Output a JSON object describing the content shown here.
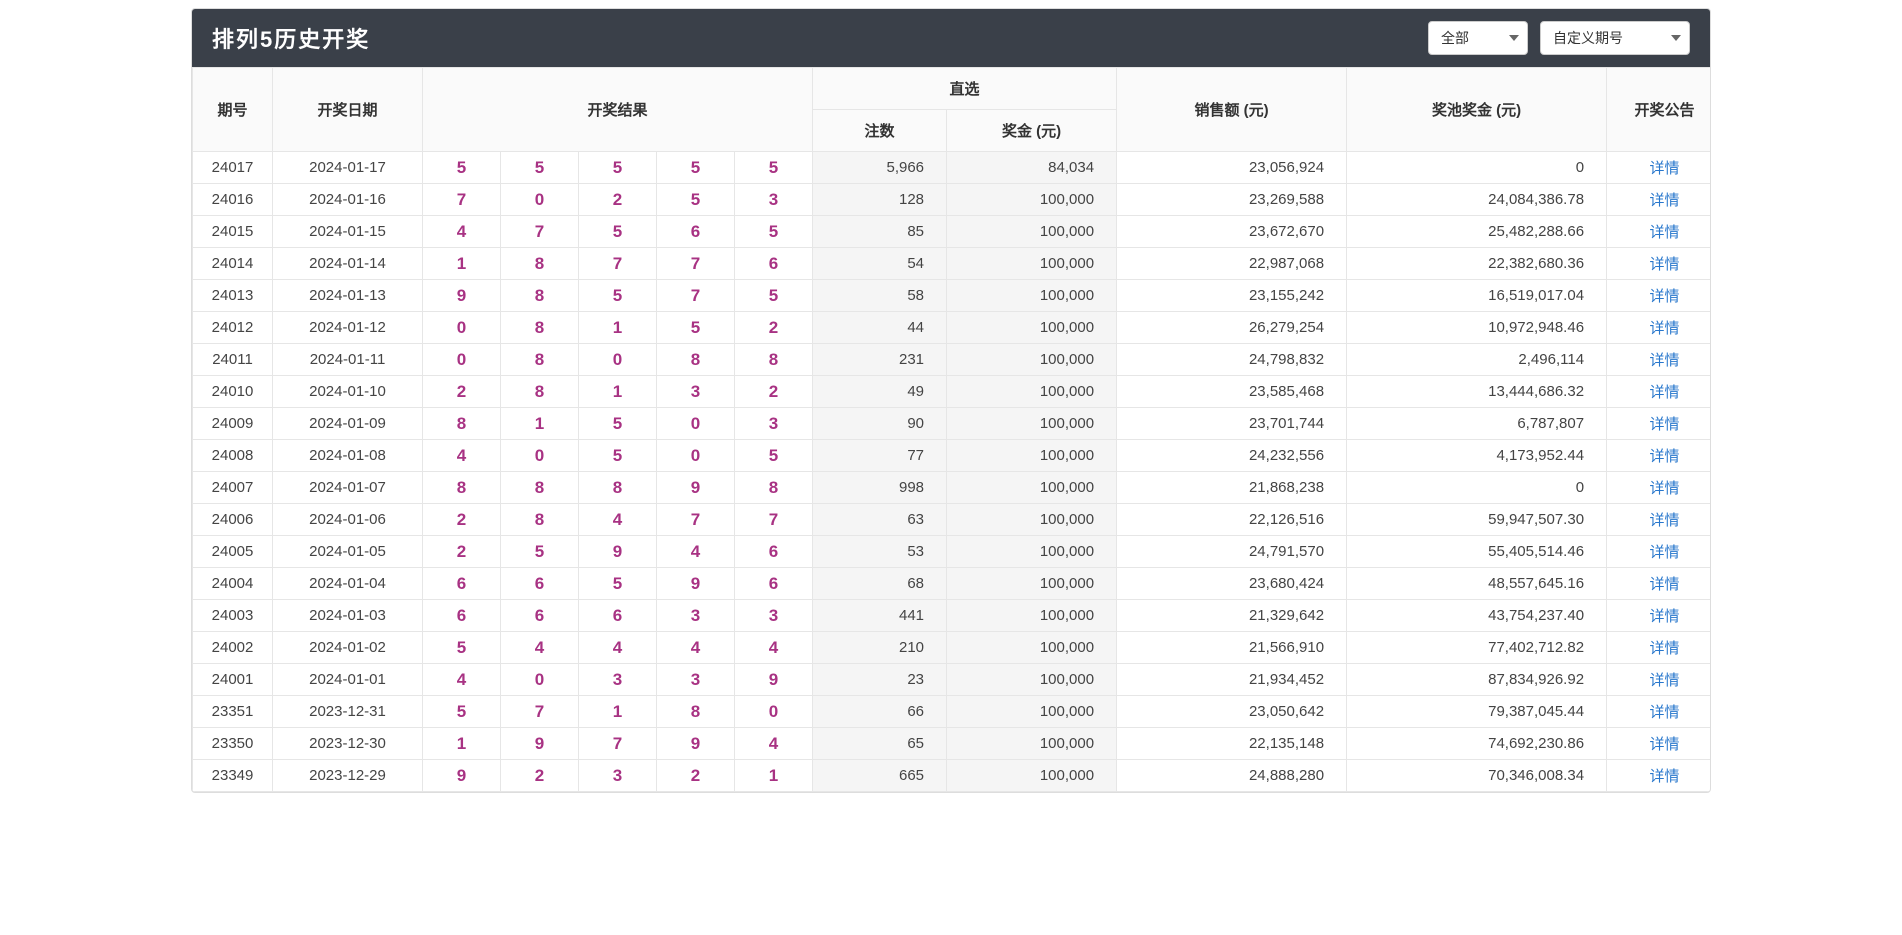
{
  "title": "排列5历史开奖",
  "filters": {
    "all": "全部",
    "custom": "自定义期号"
  },
  "headers": {
    "period": "期号",
    "date": "开奖日期",
    "result": "开奖结果",
    "direct": "直选",
    "count": "注数",
    "prize": "奖金 (元)",
    "sales": "销售额 (元)",
    "pool": "奖池奖金 (元)",
    "action": "开奖公告"
  },
  "detail": "详情",
  "rows": [
    {
      "p": "24017",
      "d": "2024-01-17",
      "n": [
        "5",
        "5",
        "5",
        "5",
        "5"
      ],
      "c": "5,966",
      "a": "84,034",
      "s": "23,056,924",
      "pl": "0"
    },
    {
      "p": "24016",
      "d": "2024-01-16",
      "n": [
        "7",
        "0",
        "2",
        "5",
        "3"
      ],
      "c": "128",
      "a": "100,000",
      "s": "23,269,588",
      "pl": "24,084,386.78"
    },
    {
      "p": "24015",
      "d": "2024-01-15",
      "n": [
        "4",
        "7",
        "5",
        "6",
        "5"
      ],
      "c": "85",
      "a": "100,000",
      "s": "23,672,670",
      "pl": "25,482,288.66"
    },
    {
      "p": "24014",
      "d": "2024-01-14",
      "n": [
        "1",
        "8",
        "7",
        "7",
        "6"
      ],
      "c": "54",
      "a": "100,000",
      "s": "22,987,068",
      "pl": "22,382,680.36"
    },
    {
      "p": "24013",
      "d": "2024-01-13",
      "n": [
        "9",
        "8",
        "5",
        "7",
        "5"
      ],
      "c": "58",
      "a": "100,000",
      "s": "23,155,242",
      "pl": "16,519,017.04"
    },
    {
      "p": "24012",
      "d": "2024-01-12",
      "n": [
        "0",
        "8",
        "1",
        "5",
        "2"
      ],
      "c": "44",
      "a": "100,000",
      "s": "26,279,254",
      "pl": "10,972,948.46"
    },
    {
      "p": "24011",
      "d": "2024-01-11",
      "n": [
        "0",
        "8",
        "0",
        "8",
        "8"
      ],
      "c": "231",
      "a": "100,000",
      "s": "24,798,832",
      "pl": "2,496,114"
    },
    {
      "p": "24010",
      "d": "2024-01-10",
      "n": [
        "2",
        "8",
        "1",
        "3",
        "2"
      ],
      "c": "49",
      "a": "100,000",
      "s": "23,585,468",
      "pl": "13,444,686.32"
    },
    {
      "p": "24009",
      "d": "2024-01-09",
      "n": [
        "8",
        "1",
        "5",
        "0",
        "3"
      ],
      "c": "90",
      "a": "100,000",
      "s": "23,701,744",
      "pl": "6,787,807"
    },
    {
      "p": "24008",
      "d": "2024-01-08",
      "n": [
        "4",
        "0",
        "5",
        "0",
        "5"
      ],
      "c": "77",
      "a": "100,000",
      "s": "24,232,556",
      "pl": "4,173,952.44"
    },
    {
      "p": "24007",
      "d": "2024-01-07",
      "n": [
        "8",
        "8",
        "8",
        "9",
        "8"
      ],
      "c": "998",
      "a": "100,000",
      "s": "21,868,238",
      "pl": "0"
    },
    {
      "p": "24006",
      "d": "2024-01-06",
      "n": [
        "2",
        "8",
        "4",
        "7",
        "7"
      ],
      "c": "63",
      "a": "100,000",
      "s": "22,126,516",
      "pl": "59,947,507.30"
    },
    {
      "p": "24005",
      "d": "2024-01-05",
      "n": [
        "2",
        "5",
        "9",
        "4",
        "6"
      ],
      "c": "53",
      "a": "100,000",
      "s": "24,791,570",
      "pl": "55,405,514.46"
    },
    {
      "p": "24004",
      "d": "2024-01-04",
      "n": [
        "6",
        "6",
        "5",
        "9",
        "6"
      ],
      "c": "68",
      "a": "100,000",
      "s": "23,680,424",
      "pl": "48,557,645.16"
    },
    {
      "p": "24003",
      "d": "2024-01-03",
      "n": [
        "6",
        "6",
        "6",
        "3",
        "3"
      ],
      "c": "441",
      "a": "100,000",
      "s": "21,329,642",
      "pl": "43,754,237.40"
    },
    {
      "p": "24002",
      "d": "2024-01-02",
      "n": [
        "5",
        "4",
        "4",
        "4",
        "4"
      ],
      "c": "210",
      "a": "100,000",
      "s": "21,566,910",
      "pl": "77,402,712.82"
    },
    {
      "p": "24001",
      "d": "2024-01-01",
      "n": [
        "4",
        "0",
        "3",
        "3",
        "9"
      ],
      "c": "23",
      "a": "100,000",
      "s": "21,934,452",
      "pl": "87,834,926.92"
    },
    {
      "p": "23351",
      "d": "2023-12-31",
      "n": [
        "5",
        "7",
        "1",
        "8",
        "0"
      ],
      "c": "66",
      "a": "100,000",
      "s": "23,050,642",
      "pl": "79,387,045.44"
    },
    {
      "p": "23350",
      "d": "2023-12-30",
      "n": [
        "1",
        "9",
        "7",
        "9",
        "4"
      ],
      "c": "65",
      "a": "100,000",
      "s": "22,135,148",
      "pl": "74,692,230.86"
    },
    {
      "p": "23349",
      "d": "2023-12-29",
      "n": [
        "9",
        "2",
        "3",
        "2",
        "1"
      ],
      "c": "665",
      "a": "100,000",
      "s": "24,888,280",
      "pl": "70,346,008.34"
    }
  ]
}
